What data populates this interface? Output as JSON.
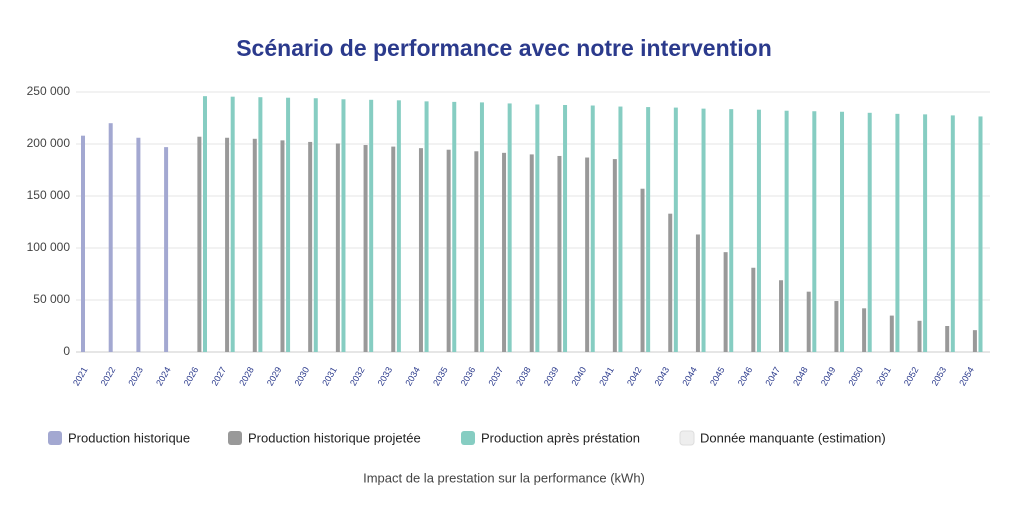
{
  "chart_data": {
    "type": "bar",
    "title": "Scénario de performance avec notre intervention",
    "x_label": "Impact de la prestation sur la performance (kWh)",
    "categories": [
      "2021",
      "2022",
      "2023",
      "2024",
      "2026",
      "2027",
      "2028",
      "2029",
      "2030",
      "2031",
      "2032",
      "2033",
      "2034",
      "2035",
      "2036",
      "2037",
      "2038",
      "2039",
      "2040",
      "2041",
      "2042",
      "2043",
      "2044",
      "2045",
      "2046",
      "2047",
      "2048",
      "2049",
      "2050",
      "2051",
      "2052",
      "2053",
      "2054"
    ],
    "series": [
      {
        "name": "Production historique",
        "color": "#a3a8d1",
        "values": [
          208000,
          220000,
          206000,
          197000,
          null,
          null,
          null,
          null,
          null,
          null,
          null,
          null,
          null,
          null,
          null,
          null,
          null,
          null,
          null,
          null,
          null,
          null,
          null,
          null,
          null,
          null,
          null,
          null,
          null,
          null,
          null,
          null,
          null
        ]
      },
      {
        "name": "Production historique projetée",
        "color": "#999999",
        "values": [
          null,
          null,
          null,
          null,
          207000,
          206000,
          205000,
          203500,
          202000,
          200500,
          199000,
          197500,
          196000,
          194500,
          193000,
          191500,
          190000,
          188500,
          187000,
          185500,
          157000,
          133000,
          113000,
          96000,
          81000,
          69000,
          58000,
          49000,
          42000,
          35000,
          30000,
          25000,
          21000
        ]
      },
      {
        "name": "Production après préstation",
        "color": "#86cdc2",
        "values": [
          null,
          null,
          null,
          null,
          246000,
          245500,
          245000,
          244500,
          244000,
          243000,
          242500,
          242000,
          241000,
          240500,
          240000,
          239000,
          238000,
          237500,
          237000,
          236000,
          235500,
          235000,
          234000,
          233500,
          233000,
          232000,
          231500,
          231000,
          230000,
          229000,
          228500,
          227500,
          226500
        ]
      },
      {
        "name": "Donnée manquante (estimation)",
        "color": "#eeeeee",
        "values": [
          null,
          null,
          null,
          null,
          null,
          null,
          null,
          null,
          null,
          null,
          null,
          null,
          null,
          null,
          null,
          null,
          null,
          null,
          null,
          null,
          null,
          null,
          null,
          null,
          null,
          null,
          null,
          null,
          null,
          null,
          null,
          null,
          null
        ]
      }
    ],
    "ylim": [
      0,
      250000
    ],
    "yticks": [
      0,
      {
        "value": 50000,
        "label": "50 000"
      },
      {
        "value": 100000,
        "label": "100 000"
      },
      {
        "value": 150000,
        "label": "150 000"
      },
      {
        "value": 200000,
        "label": "200 000"
      },
      {
        "value": 250000,
        "label": "250 000"
      }
    ],
    "grid": true
  }
}
